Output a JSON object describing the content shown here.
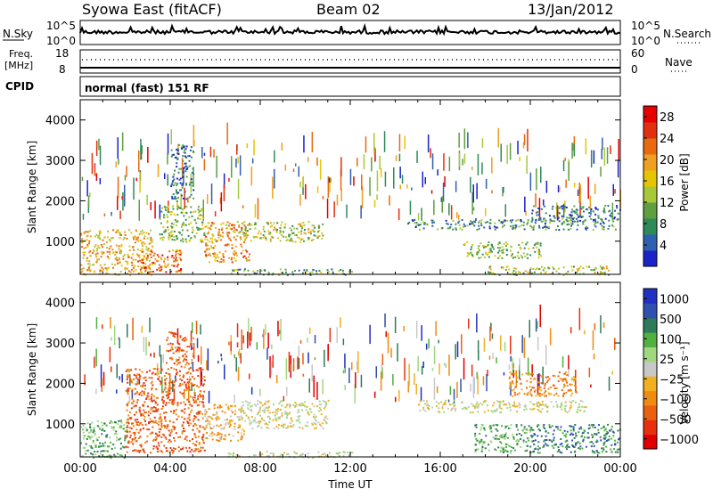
{
  "header": {
    "station": "Syowa East (fitACF)",
    "beam": "Beam 02",
    "date": "13/Jan/2012"
  },
  "top_panels": {
    "nsky_label": "N.Sky",
    "nsky_ticks": [
      "10^5",
      "10^0"
    ],
    "nsearch_label": "N.Search",
    "nsearch_ticks": [
      "10^5",
      "10^0"
    ],
    "freq_label": "Freq.",
    "freq_unit": "[MHz]",
    "freq_ticks": [
      "18",
      "8"
    ],
    "nave_label": "Nave",
    "nave_ticks": [
      "60",
      "0"
    ],
    "cpid_label": "CPID",
    "cpid_text": "normal (fast) 151 RF"
  },
  "colors": {
    "power": [
      "#1a23c8",
      "#2f5fb0",
      "#2e8b57",
      "#5f9f40",
      "#a8c83a",
      "#e6c400",
      "#f0a020",
      "#e86a10",
      "#e03010",
      "#e80000"
    ],
    "velocity": [
      "#2030c0",
      "#3050b0",
      "#2e7a5a",
      "#50b040",
      "#a0d880",
      "#c8c8c8",
      "#f0b020",
      "#f08a10",
      "#e86010",
      "#e83010",
      "#e00000"
    ]
  },
  "chart_data": [
    {
      "type": "heatmap",
      "panel": "power",
      "ylabel": "Slant Range [km]",
      "yticks": [
        "1000",
        "2000",
        "3000",
        "4000"
      ],
      "ylim": [
        180,
        4500
      ],
      "xlim": [
        "00:00",
        "24:00"
      ],
      "colorbar_label": "Power [dB]",
      "colorbar_ticks": [
        "4",
        "8",
        "12",
        "16",
        "20",
        "24",
        "28"
      ],
      "colorbar_range": [
        0,
        30
      ],
      "regions": [
        {
          "t0": 0.0,
          "t1": 3.2,
          "r0": 180,
          "r1": 1300,
          "v": 18
        },
        {
          "t0": 2.5,
          "t1": 4.5,
          "r0": 250,
          "r1": 800,
          "v": 22
        },
        {
          "t0": 3.5,
          "t1": 5.5,
          "r0": 1000,
          "r1": 1900,
          "v": 12
        },
        {
          "t0": 4.0,
          "t1": 5.0,
          "r0": 2000,
          "r1": 3400,
          "v": 6
        },
        {
          "t0": 5.5,
          "t1": 7.5,
          "r0": 500,
          "r1": 1500,
          "v": 20
        },
        {
          "t0": 7.0,
          "t1": 10.8,
          "r0": 1000,
          "r1": 1500,
          "v": 14
        },
        {
          "t0": 6.5,
          "t1": 12.2,
          "r0": 180,
          "r1": 330,
          "v": 10
        },
        {
          "t0": 14.5,
          "t1": 23.8,
          "r0": 1300,
          "r1": 1550,
          "v": 8
        },
        {
          "t0": 17.0,
          "t1": 20.5,
          "r0": 600,
          "r1": 1000,
          "v": 12
        },
        {
          "t0": 18.0,
          "t1": 23.5,
          "r0": 180,
          "r1": 400,
          "v": 14
        },
        {
          "t0": 20.0,
          "t1": 24.0,
          "r0": 1500,
          "r1": 1900,
          "v": 6
        }
      ]
    },
    {
      "type": "heatmap",
      "panel": "velocity",
      "ylabel": "Slant Range [km]",
      "yticks": [
        "1000",
        "2000",
        "3000",
        "4000"
      ],
      "ylim": [
        180,
        4500
      ],
      "xlabel": "Time UT",
      "xticks": [
        "00:00",
        "04:00",
        "08:00",
        "12:00",
        "16:00",
        "20:00",
        "00:00"
      ],
      "xlim": [
        "00:00",
        "24:00"
      ],
      "colorbar_label": "Velocity [m s⁻¹]",
      "colorbar_ticks": [
        "1000",
        "500",
        "100",
        "25",
        "−25",
        "−100",
        "−500",
        "−1000"
      ],
      "regions": [
        {
          "t0": 0.0,
          "t1": 2.0,
          "r0": 180,
          "r1": 1100,
          "v": 3
        },
        {
          "t0": 2.0,
          "t1": 5.5,
          "r0": 300,
          "r1": 2400,
          "v": 8
        },
        {
          "t0": 3.8,
          "t1": 5.0,
          "r0": 2400,
          "r1": 3300,
          "v": 8
        },
        {
          "t0": 5.5,
          "t1": 7.3,
          "r0": 600,
          "r1": 1500,
          "v": 6
        },
        {
          "t0": 7.0,
          "t1": 11.0,
          "r0": 900,
          "r1": 1600,
          "v": 5
        },
        {
          "t0": 6.5,
          "t1": 12.2,
          "r0": 180,
          "r1": 330,
          "v": 5
        },
        {
          "t0": 15.0,
          "t1": 22.5,
          "r0": 1300,
          "r1": 1600,
          "v": 5
        },
        {
          "t0": 17.5,
          "t1": 20.0,
          "r0": 300,
          "r1": 1000,
          "v": 3
        },
        {
          "t0": 20.0,
          "t1": 24.0,
          "r0": 300,
          "r1": 1000,
          "v": 2
        },
        {
          "t0": 19.0,
          "t1": 22.0,
          "r0": 1700,
          "r1": 2300,
          "v": 7
        }
      ]
    }
  ]
}
